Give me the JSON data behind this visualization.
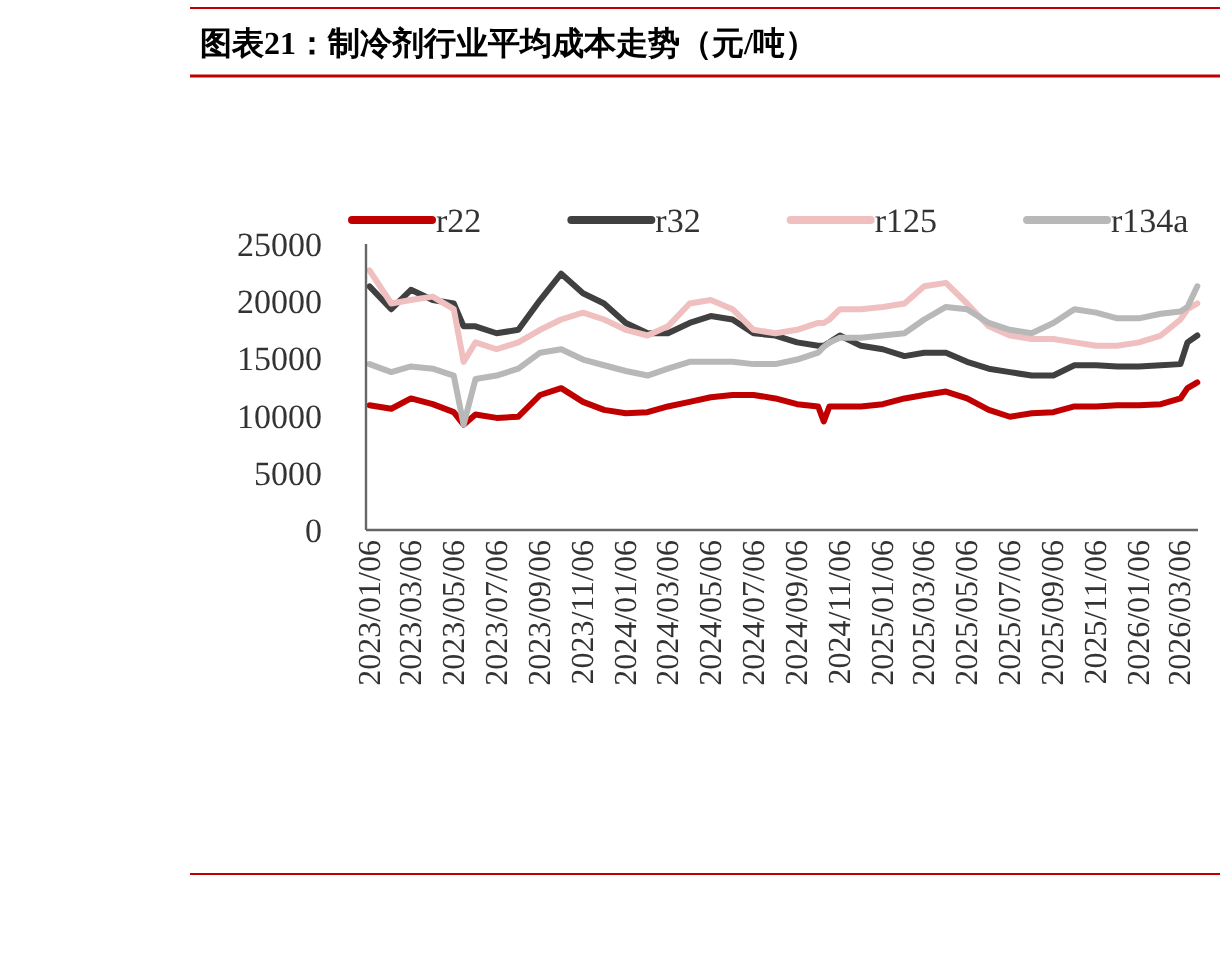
{
  "chart_data": {
    "type": "line",
    "title": "图表21：制冷剂行业平均成本走势（元/吨）",
    "x": [
      "2023-01-06",
      "2023-02-06",
      "2023-03-06",
      "2023-04-06",
      "2023-05-06",
      "2023-05-20",
      "2023-06-06",
      "2023-07-06",
      "2023-08-06",
      "2023-09-06",
      "2023-10-06",
      "2023-11-06",
      "2023-12-06",
      "2024-01-06",
      "2024-02-06",
      "2024-03-06",
      "2024-04-06",
      "2024-05-06",
      "2024-06-06",
      "2024-07-06",
      "2024-08-06",
      "2024-09-06",
      "2024-10-06",
      "2024-10-14",
      "2024-10-22",
      "2024-11-06",
      "2024-12-06",
      "2025-01-06",
      "2025-02-06",
      "2025-03-06",
      "2025-04-06",
      "2025-05-06",
      "2025-06-06",
      "2025-07-06",
      "2025-08-06",
      "2025-09-06",
      "2025-10-06",
      "2025-11-06",
      "2025-12-06",
      "2026-01-06",
      "2026-02-06",
      "2026-03-06",
      "2026-03-16",
      "2026-03-30"
    ],
    "series": [
      {
        "name": "r22",
        "color": "#c00000",
        "values": [
          10900,
          10600,
          11500,
          11000,
          10300,
          9200,
          10100,
          9800,
          9900,
          11800,
          12400,
          11200,
          10500,
          10200,
          10300,
          10800,
          11200,
          11600,
          11800,
          11800,
          11500,
          11000,
          10800,
          9500,
          10800,
          10800,
          10800,
          11000,
          11500,
          11800,
          12100,
          11500,
          10500,
          9900,
          10200,
          10300,
          10800,
          10800,
          10900,
          10900,
          11000,
          11500,
          12400,
          12900
        ]
      },
      {
        "name": "r32",
        "color": "#404040",
        "values": [
          21300,
          19300,
          21000,
          20100,
          19800,
          17800,
          17800,
          17200,
          17500,
          20100,
          22400,
          20700,
          19800,
          18100,
          17200,
          17200,
          18100,
          18700,
          18400,
          17200,
          17000,
          16400,
          16100,
          16100,
          16400,
          17000,
          16100,
          15800,
          15200,
          15500,
          15500,
          14700,
          14100,
          13800,
          13500,
          13500,
          14400,
          14400,
          14300,
          14300,
          14400,
          14500,
          16400,
          17000
        ]
      },
      {
        "name": "r125",
        "color": "#f0c0c0",
        "values": [
          22700,
          19800,
          20100,
          20400,
          19300,
          14700,
          16400,
          15800,
          16400,
          17500,
          18400,
          19000,
          18400,
          17500,
          17000,
          17800,
          19800,
          20100,
          19300,
          17500,
          17200,
          17500,
          18100,
          18100,
          18400,
          19300,
          19300,
          19500,
          19800,
          21300,
          21600,
          19800,
          17800,
          17000,
          16700,
          16700,
          16400,
          16100,
          16100,
          16400,
          17000,
          18400,
          19300,
          19800
        ]
      },
      {
        "name": "r134a",
        "color": "#b8b8b8",
        "values": [
          14500,
          13800,
          14300,
          14100,
          13500,
          9200,
          13200,
          13500,
          14100,
          15500,
          15800,
          14900,
          14400,
          13900,
          13500,
          14100,
          14700,
          14700,
          14700,
          14500,
          14500,
          14900,
          15500,
          16000,
          16400,
          16800,
          16800,
          17000,
          17200,
          18400,
          19500,
          19300,
          18100,
          17500,
          17200,
          18100,
          19300,
          19000,
          18500,
          18500,
          18900,
          19100,
          19500,
          21300
        ]
      }
    ],
    "xlim": [
      "2023-01-01",
      "2026-03-31"
    ],
    "xticks": [
      {
        "value": "2023-01-06",
        "label": "2023/01/06"
      },
      {
        "value": "2023-03-06",
        "label": "2023/03/06"
      },
      {
        "value": "2023-05-06",
        "label": "2023/05/06"
      },
      {
        "value": "2023-07-06",
        "label": "2023/07/06"
      },
      {
        "value": "2023-09-06",
        "label": "2023/09/06"
      },
      {
        "value": "2023-11-06",
        "label": "2023/11/06"
      },
      {
        "value": "2024-01-06",
        "label": "2024/01/06"
      },
      {
        "value": "2024-03-06",
        "label": "2024/03/06"
      },
      {
        "value": "2024-05-06",
        "label": "2024/05/06"
      },
      {
        "value": "2024-07-06",
        "label": "2024/07/06"
      },
      {
        "value": "2024-09-06",
        "label": "2024/09/06"
      },
      {
        "value": "2024-11-06",
        "label": "2024/11/06"
      },
      {
        "value": "2025-01-06",
        "label": "2025/01/06"
      },
      {
        "value": "2025-03-06",
        "label": "2025/03/06"
      },
      {
        "value": "2025-05-06",
        "label": "2025/05/06"
      },
      {
        "value": "2025-07-06",
        "label": "2025/07/06"
      },
      {
        "value": "2025-09-06",
        "label": "2025/09/06"
      },
      {
        "value": "2025-11-06",
        "label": "2025/11/06"
      },
      {
        "value": "2026-01-06",
        "label": "2026/01/06"
      },
      {
        "value": "2026-03-06",
        "label": "2026/03/06"
      }
    ],
    "ylim": [
      0,
      25000
    ],
    "yticks": [
      0,
      5000,
      10000,
      15000,
      20000,
      25000
    ],
    "grid": false,
    "legend": "top",
    "marker": "none",
    "line_style": "solid"
  }
}
